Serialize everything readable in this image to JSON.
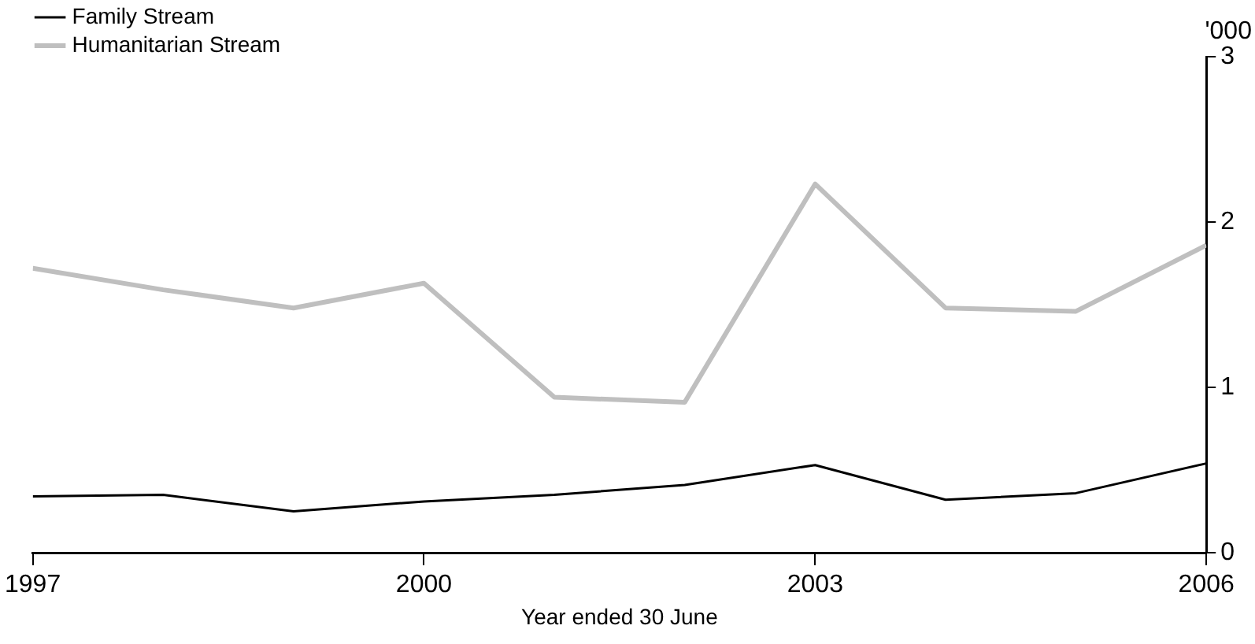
{
  "chart_data": {
    "type": "line",
    "xlabel": "Year ended 30 June",
    "ylabel": "'000",
    "x": [
      1997,
      1998,
      1999,
      2000,
      2001,
      2002,
      2003,
      2004,
      2005,
      2006
    ],
    "series": [
      {
        "name": "Family Stream",
        "color": "#000000",
        "values": [
          0.34,
          0.35,
          0.25,
          0.31,
          0.35,
          0.41,
          0.53,
          0.32,
          0.36,
          0.54
        ]
      },
      {
        "name": "Humanitarian Stream",
        "color": "#bfbfbf",
        "values": [
          1.72,
          1.59,
          1.48,
          1.63,
          0.94,
          0.91,
          2.23,
          1.48,
          1.46,
          1.86
        ]
      }
    ],
    "xlim": [
      1997,
      2006
    ],
    "xticks": [
      1997,
      2000,
      2003,
      2006
    ],
    "ylim": [
      0,
      3
    ],
    "yticks": [
      0,
      1,
      2,
      3
    ],
    "grid": false,
    "legend": "top left",
    "marker": "none",
    "line_style": "solid"
  }
}
